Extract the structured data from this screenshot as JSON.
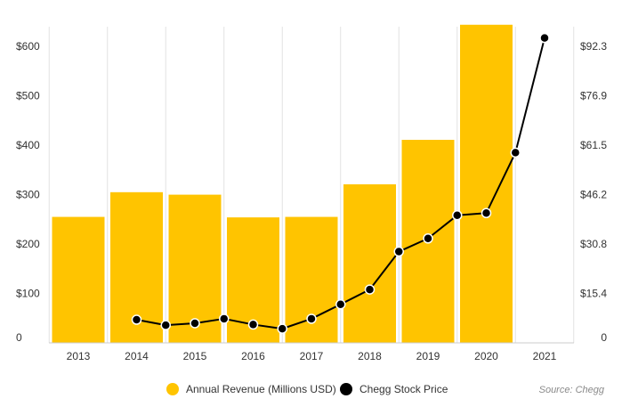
{
  "chart_data": {
    "type": "bar",
    "categories": [
      "2013",
      "2014",
      "2015",
      "2016",
      "2017",
      "2018",
      "2019",
      "2020",
      "2021"
    ],
    "series": [
      {
        "name": "Annual Revenue (Millions USD)",
        "type": "bar",
        "axis": "left",
        "color": "#FFC400",
        "values": [
          255,
          305,
          300,
          254,
          255,
          321,
          411,
          644,
          null
        ]
      },
      {
        "name": "Chegg Stock Price",
        "type": "line",
        "axis": "right",
        "color": "#000000",
        "points": [
          {
            "x": 2014.0,
            "y": 7.2
          },
          {
            "x": 2014.5,
            "y": 5.5
          },
          {
            "x": 2015.0,
            "y": 6.1
          },
          {
            "x": 2015.5,
            "y": 7.5
          },
          {
            "x": 2016.0,
            "y": 5.7
          },
          {
            "x": 2016.5,
            "y": 4.4
          },
          {
            "x": 2017.0,
            "y": 7.5
          },
          {
            "x": 2017.5,
            "y": 12.0
          },
          {
            "x": 2018.0,
            "y": 16.6
          },
          {
            "x": 2018.5,
            "y": 28.4
          },
          {
            "x": 2019.0,
            "y": 32.5
          },
          {
            "x": 2019.5,
            "y": 39.7
          },
          {
            "x": 2020.0,
            "y": 40.4
          },
          {
            "x": 2020.5,
            "y": 59.2
          },
          {
            "x": 2021.0,
            "y": 94.9
          }
        ]
      }
    ],
    "y_left": {
      "ylim": [
        0,
        640
      ],
      "ticks": [
        0,
        100,
        200,
        300,
        400,
        500,
        600
      ],
      "tick_labels": [
        "0",
        "$100",
        "$200",
        "$300",
        "$400",
        "$500",
        "$600"
      ]
    },
    "y_right": {
      "ylim": [
        0,
        98.4
      ],
      "ticks": [
        0,
        15.4,
        30.8,
        46.2,
        61.5,
        76.9,
        92.3
      ],
      "tick_labels": [
        "0",
        "$15.4",
        "$30.8",
        "$46.2",
        "$61.5",
        "$76.9",
        "$92.3"
      ]
    },
    "grid": true,
    "legend": {
      "position": "bottom-center",
      "items": [
        {
          "label": "Annual Revenue (Millions USD)",
          "color": "#FFC400"
        },
        {
          "label": "Chegg Stock Price",
          "color": "#000000"
        }
      ]
    },
    "source": "Source: Chegg"
  }
}
